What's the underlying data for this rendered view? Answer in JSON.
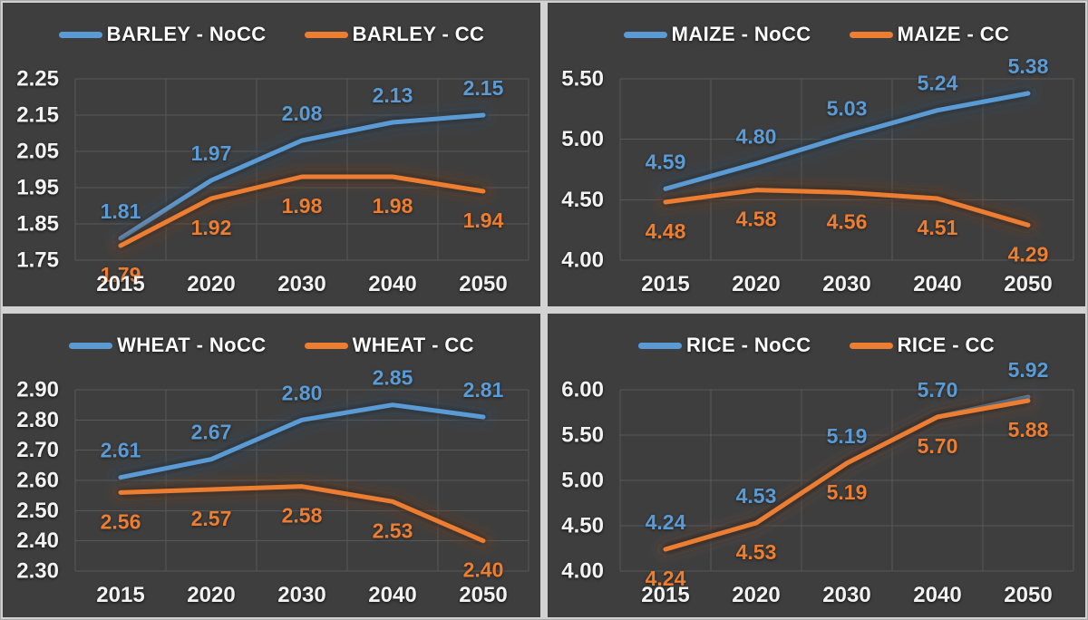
{
  "colors": {
    "nocc": "#5B9BD5",
    "cc": "#ED7D31",
    "panel_bg": "#3E3E3E",
    "grid": "#585858",
    "axis_text": "#F2F2F2",
    "legend_text": "#FFFFFF"
  },
  "chart_data": [
    {
      "type": "line",
      "crop": "BARLEY",
      "title": "",
      "legend_position": "top",
      "grid": true,
      "categories": [
        "2015",
        "2020",
        "2030",
        "2040",
        "2050"
      ],
      "ylim": [
        1.75,
        2.25
      ],
      "y_ticks": [
        "2.25",
        "2.15",
        "2.05",
        "1.95",
        "1.85",
        "1.75"
      ],
      "series": [
        {
          "name": "BARLEY - NoCC",
          "key": "nocc",
          "values": [
            1.81,
            1.97,
            2.08,
            2.13,
            2.15
          ],
          "labels": [
            "1.81",
            "1.97",
            "2.08",
            "2.13",
            "2.15"
          ]
        },
        {
          "name": "BARLEY - CC",
          "key": "cc",
          "values": [
            1.79,
            1.92,
            1.98,
            1.98,
            1.94
          ],
          "labels": [
            "1.79",
            "1.92",
            "1.98",
            "1.98",
            "1.94"
          ]
        }
      ]
    },
    {
      "type": "line",
      "crop": "MAIZE",
      "title": "",
      "legend_position": "top",
      "grid": true,
      "categories": [
        "2015",
        "2020",
        "2030",
        "2040",
        "2050"
      ],
      "ylim": [
        4.0,
        5.5
      ],
      "y_ticks": [
        "5.50",
        "5.00",
        "4.50",
        "4.00"
      ],
      "series": [
        {
          "name": "MAIZE - NoCC",
          "key": "nocc",
          "values": [
            4.59,
            4.8,
            5.03,
            5.24,
            5.38
          ],
          "labels": [
            "4.59",
            "4.80",
            "5.03",
            "5.24",
            "5.38"
          ]
        },
        {
          "name": "MAIZE - CC",
          "key": "cc",
          "values": [
            4.48,
            4.58,
            4.56,
            4.51,
            4.29
          ],
          "labels": [
            "4.48",
            "4.58",
            "4.56",
            "4.51",
            "4.29"
          ]
        }
      ]
    },
    {
      "type": "line",
      "crop": "WHEAT",
      "title": "",
      "legend_position": "top",
      "grid": true,
      "categories": [
        "2015",
        "2020",
        "2030",
        "2040",
        "2050"
      ],
      "ylim": [
        2.3,
        2.9
      ],
      "y_ticks": [
        "2.90",
        "2.80",
        "2.70",
        "2.60",
        "2.50",
        "2.40",
        "2.30"
      ],
      "series": [
        {
          "name": "WHEAT - NoCC",
          "key": "nocc",
          "values": [
            2.61,
            2.67,
            2.8,
            2.85,
            2.81
          ],
          "labels": [
            "2.61",
            "2.67",
            "2.80",
            "2.85",
            "2.81"
          ]
        },
        {
          "name": "WHEAT - CC",
          "key": "cc",
          "values": [
            2.56,
            2.57,
            2.58,
            2.53,
            2.4
          ],
          "labels": [
            "2.56",
            "2.57",
            "2.58",
            "2.53",
            "2.40"
          ]
        }
      ]
    },
    {
      "type": "line",
      "crop": "RICE",
      "title": "",
      "legend_position": "top",
      "grid": true,
      "categories": [
        "2015",
        "2020",
        "2030",
        "2040",
        "2050"
      ],
      "ylim": [
        4.0,
        6.0
      ],
      "y_ticks": [
        "6.00",
        "5.50",
        "5.00",
        "4.50",
        "4.00"
      ],
      "series": [
        {
          "name": "RICE - NoCC",
          "key": "nocc",
          "values": [
            4.24,
            4.53,
            5.19,
            5.7,
            5.92
          ],
          "labels": [
            "4.24",
            "4.53",
            "5.19",
            "5.70",
            "5.92"
          ]
        },
        {
          "name": "RICE - CC",
          "key": "cc",
          "values": [
            4.24,
            4.53,
            5.19,
            5.7,
            5.88
          ],
          "labels": [
            "4.24",
            "4.53",
            "5.19",
            "5.70",
            "5.88"
          ]
        }
      ]
    }
  ]
}
